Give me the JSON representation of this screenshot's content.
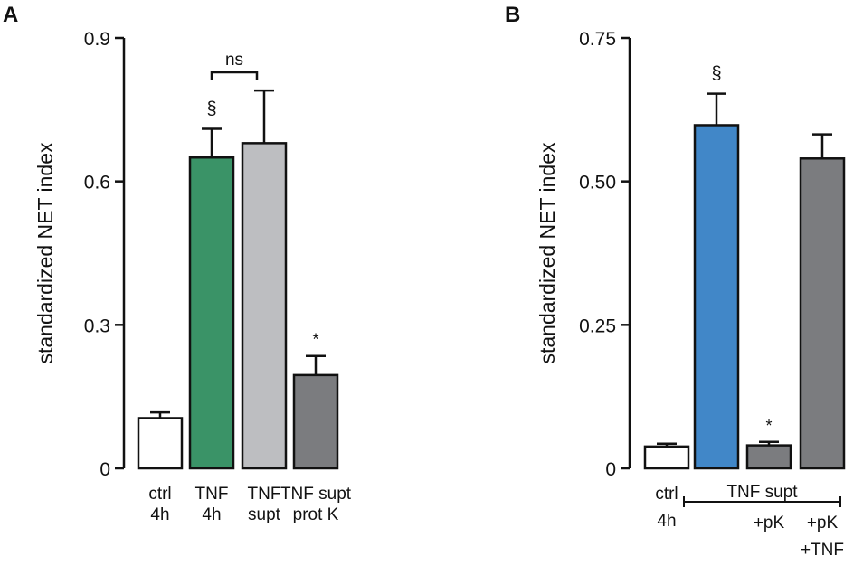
{
  "chart_data": [
    {
      "panel": "A",
      "type": "bar",
      "ylabel": "standardized NET index",
      "ylim": [
        0,
        0.9
      ],
      "yticks": [
        "0",
        "0.3",
        "0.6",
        "0.9"
      ],
      "categories": [
        {
          "lines": [
            "ctrl",
            "4h"
          ]
        },
        {
          "lines": [
            "TNF",
            "4h"
          ]
        },
        {
          "lines": [
            "TNF",
            "supt"
          ]
        },
        {
          "lines": [
            "TNF supt",
            "prot K"
          ]
        }
      ],
      "values": [
        0.105,
        0.65,
        0.68,
        0.195
      ],
      "errors": [
        0.012,
        0.06,
        0.11,
        0.04
      ],
      "colors": [
        "#ffffff",
        "#3a9367",
        "#bdbec1",
        "#7b7c7f"
      ],
      "marks": [
        "",
        "§",
        "",
        "*"
      ],
      "bracket": {
        "from": 1,
        "to": 2,
        "label": "ns"
      }
    },
    {
      "panel": "B",
      "type": "bar",
      "ylabel": "standardized NET index",
      "ylim": [
        0,
        0.75
      ],
      "yticks": [
        "0",
        "0.25",
        "0.50",
        "0.75"
      ],
      "categories": [
        {
          "lines": [
            "ctrl",
            "4h"
          ]
        },
        {
          "lines": []
        },
        {
          "lines": [
            "+pK"
          ]
        },
        {
          "lines": [
            "+pK",
            "+TNF"
          ]
        }
      ],
      "values": [
        0.038,
        0.598,
        0.04,
        0.54
      ],
      "errors": [
        0.005,
        0.055,
        0.006,
        0.042
      ],
      "colors": [
        "#ffffff",
        "#4187c8",
        "#7b7c7f",
        "#7b7c7f"
      ],
      "marks": [
        "",
        "§",
        "*",
        ""
      ],
      "group": {
        "from": 1,
        "to": 3,
        "label": "TNF supt"
      }
    }
  ]
}
